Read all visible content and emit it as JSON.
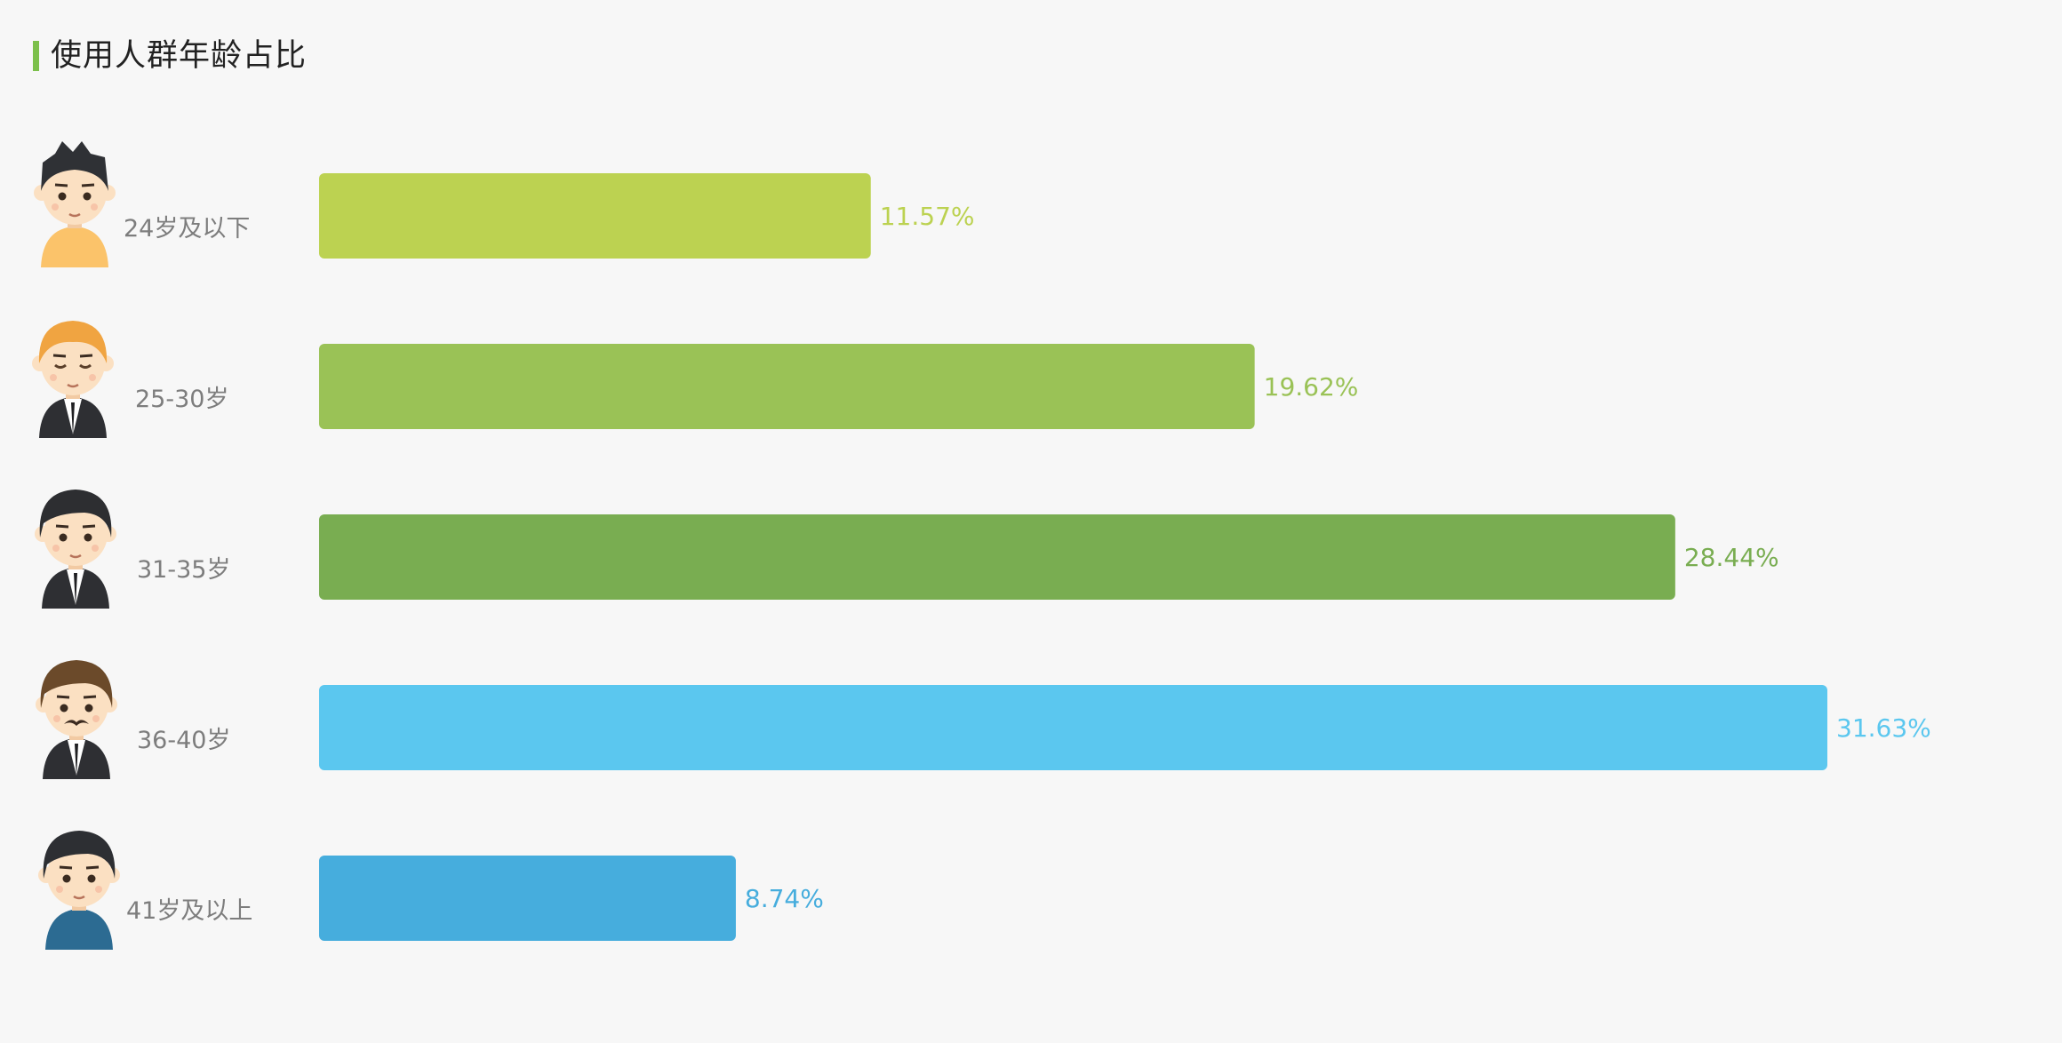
{
  "title": "使用人群年龄占比",
  "accent_color": "#7cc04b",
  "chart_data": {
    "type": "bar",
    "orientation": "horizontal",
    "title": "使用人群年龄占比",
    "categories": [
      "24岁及以下",
      "25-30岁",
      "31-35岁",
      "36-40岁",
      "41岁及以上"
    ],
    "values": [
      11.57,
      19.62,
      28.44,
      31.63,
      8.74
    ],
    "value_labels": [
      "11.57%",
      "19.62%",
      "28.44%",
      "31.63%",
      "8.74%"
    ],
    "unit": "%",
    "colors": [
      "#bcd251",
      "#9ac256",
      "#79ad51",
      "#5bc7ef",
      "#46addd"
    ],
    "icons": [
      "young-boy-yellow-shirt-icon",
      "orange-hair-man-suit-icon",
      "black-hair-man-suit-icon",
      "mustache-man-suit-icon",
      "older-man-blue-shirt-icon"
    ],
    "xlim": [
      0,
      31.63
    ],
    "grid": false,
    "legend": "none"
  }
}
